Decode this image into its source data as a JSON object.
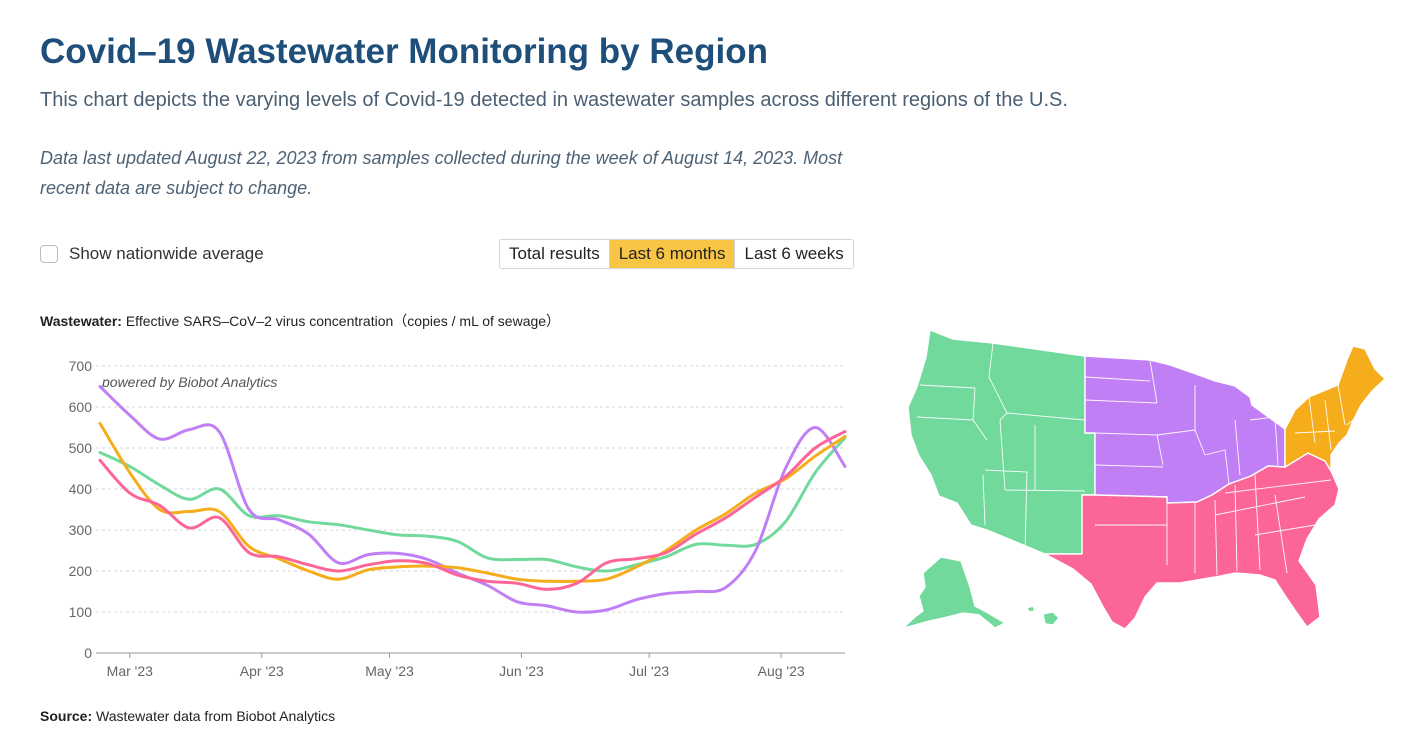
{
  "header": {
    "title": "Covid–19 Wastewater Monitoring by Region",
    "subtitle": "This chart depicts the varying levels of Covid-19 detected in wastewater samples across different regions of the U.S.",
    "note": "Data last updated August 22, 2023 from samples collected during the week of August 14, 2023. Most recent data are subject to change."
  },
  "controls": {
    "nationwide_label": "Show nationwide average",
    "nationwide_checked": false,
    "tabs": [
      "Total results",
      "Last 6 months",
      "Last 6 weeks"
    ],
    "active_tab": "Last 6 months"
  },
  "axis_title": {
    "bold": "Wastewater:",
    "text": "Effective SARS–CoV–2 virus concentration（copies / mL of sewage）"
  },
  "watermark": "powered by Biobot Analytics",
  "source": {
    "bold": "Source:",
    "text": "Wastewater data from Biobot Analytics"
  },
  "chart_data": {
    "type": "line",
    "ylim": [
      0,
      700
    ],
    "yticks": [
      0,
      100,
      200,
      300,
      400,
      500,
      600,
      700
    ],
    "xlim": [
      "2023-02-22",
      "2023-08-16"
    ],
    "xticks": [
      {
        "date": "2023-03-01",
        "label": "Mar '23"
      },
      {
        "date": "2023-04-01",
        "label": "Apr '23"
      },
      {
        "date": "2023-05-01",
        "label": "May '23"
      },
      {
        "date": "2023-06-01",
        "label": "Jun '23"
      },
      {
        "date": "2023-07-01",
        "label": "Jul '23"
      },
      {
        "date": "2023-08-01",
        "label": "Aug '23"
      }
    ],
    "grid": true,
    "legend": "map",
    "series": [
      {
        "color": "#70d99b",
        "values": [
          [
            "2023-02-22",
            489
          ],
          [
            "2023-03-01",
            455
          ],
          [
            "2023-03-08",
            410
          ],
          [
            "2023-03-15",
            375
          ],
          [
            "2023-03-22",
            400
          ],
          [
            "2023-03-29",
            335
          ],
          [
            "2023-04-05",
            335
          ],
          [
            "2023-04-12",
            320
          ],
          [
            "2023-04-19",
            313
          ],
          [
            "2023-04-26",
            300
          ],
          [
            "2023-05-03",
            288
          ],
          [
            "2023-05-10",
            285
          ],
          [
            "2023-05-17",
            272
          ],
          [
            "2023-05-24",
            232
          ],
          [
            "2023-05-31",
            228
          ],
          [
            "2023-06-07",
            228
          ],
          [
            "2023-06-14",
            210
          ],
          [
            "2023-06-21",
            200
          ],
          [
            "2023-06-28",
            215
          ],
          [
            "2023-07-05",
            235
          ],
          [
            "2023-07-12",
            265
          ],
          [
            "2023-07-19",
            263
          ],
          [
            "2023-07-26",
            265
          ],
          [
            "2023-08-02",
            320
          ],
          [
            "2023-08-09",
            440
          ],
          [
            "2023-08-16",
            525
          ]
        ]
      },
      {
        "color": "#c17ff5",
        "values": [
          [
            "2023-02-22",
            650
          ],
          [
            "2023-03-01",
            580
          ],
          [
            "2023-03-08",
            522
          ],
          [
            "2023-03-15",
            545
          ],
          [
            "2023-03-22",
            540
          ],
          [
            "2023-03-29",
            350
          ],
          [
            "2023-04-05",
            325
          ],
          [
            "2023-04-12",
            290
          ],
          [
            "2023-04-19",
            220
          ],
          [
            "2023-04-26",
            240
          ],
          [
            "2023-05-03",
            243
          ],
          [
            "2023-05-10",
            228
          ],
          [
            "2023-05-17",
            195
          ],
          [
            "2023-05-24",
            165
          ],
          [
            "2023-05-31",
            125
          ],
          [
            "2023-06-07",
            115
          ],
          [
            "2023-06-14",
            100
          ],
          [
            "2023-06-21",
            105
          ],
          [
            "2023-06-28",
            130
          ],
          [
            "2023-07-05",
            145
          ],
          [
            "2023-07-12",
            150
          ],
          [
            "2023-07-19",
            160
          ],
          [
            "2023-07-26",
            250
          ],
          [
            "2023-08-02",
            450
          ],
          [
            "2023-08-09",
            550
          ],
          [
            "2023-08-16",
            455
          ]
        ]
      },
      {
        "color": "#f5ad1b",
        "values": [
          [
            "2023-02-22",
            560
          ],
          [
            "2023-03-01",
            440
          ],
          [
            "2023-03-08",
            350
          ],
          [
            "2023-03-15",
            345
          ],
          [
            "2023-03-22",
            345
          ],
          [
            "2023-03-29",
            260
          ],
          [
            "2023-04-05",
            230
          ],
          [
            "2023-04-12",
            200
          ],
          [
            "2023-04-19",
            180
          ],
          [
            "2023-04-26",
            203
          ],
          [
            "2023-05-03",
            210
          ],
          [
            "2023-05-10",
            212
          ],
          [
            "2023-05-17",
            208
          ],
          [
            "2023-05-24",
            195
          ],
          [
            "2023-05-31",
            180
          ],
          [
            "2023-06-07",
            175
          ],
          [
            "2023-06-14",
            175
          ],
          [
            "2023-06-21",
            180
          ],
          [
            "2023-06-28",
            210
          ],
          [
            "2023-07-05",
            250
          ],
          [
            "2023-07-12",
            300
          ],
          [
            "2023-07-19",
            340
          ],
          [
            "2023-07-26",
            390
          ],
          [
            "2023-08-02",
            425
          ],
          [
            "2023-08-09",
            480
          ],
          [
            "2023-08-16",
            528
          ]
        ]
      },
      {
        "color": "#fc6696",
        "values": [
          [
            "2023-02-22",
            470
          ],
          [
            "2023-03-01",
            390
          ],
          [
            "2023-03-08",
            360
          ],
          [
            "2023-03-15",
            305
          ],
          [
            "2023-03-22",
            330
          ],
          [
            "2023-03-29",
            245
          ],
          [
            "2023-04-05",
            235
          ],
          [
            "2023-04-12",
            215
          ],
          [
            "2023-04-19",
            200
          ],
          [
            "2023-04-26",
            215
          ],
          [
            "2023-05-03",
            225
          ],
          [
            "2023-05-10",
            218
          ],
          [
            "2023-05-17",
            190
          ],
          [
            "2023-05-24",
            175
          ],
          [
            "2023-05-31",
            170
          ],
          [
            "2023-06-07",
            155
          ],
          [
            "2023-06-14",
            170
          ],
          [
            "2023-06-21",
            220
          ],
          [
            "2023-06-28",
            230
          ],
          [
            "2023-07-05",
            245
          ],
          [
            "2023-07-12",
            290
          ],
          [
            "2023-07-19",
            330
          ],
          [
            "2023-07-26",
            380
          ],
          [
            "2023-08-02",
            430
          ],
          [
            "2023-08-09",
            500
          ],
          [
            "2023-08-16",
            540
          ]
        ]
      }
    ]
  },
  "map": {
    "regions": [
      {
        "id": "west",
        "color": "#70d99b"
      },
      {
        "id": "midwest",
        "color": "#c17ff5"
      },
      {
        "id": "south",
        "color": "#fc6696"
      },
      {
        "id": "northeast",
        "color": "#f5ad1b"
      }
    ]
  }
}
